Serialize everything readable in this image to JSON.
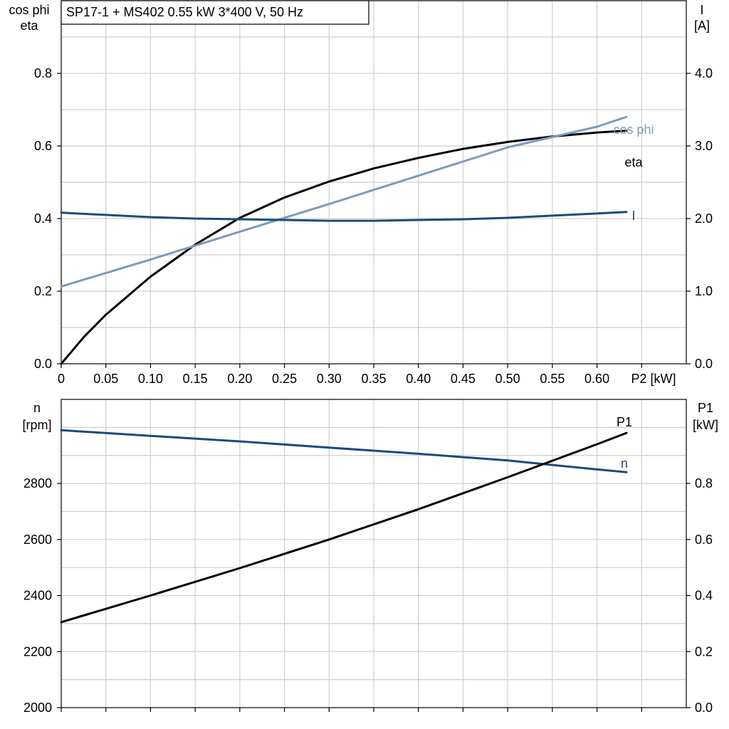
{
  "title": "SP17-1 + MS402   0.55 kW   3*400 V, 50 Hz",
  "colors": {
    "eta": "#000000",
    "cosphi": "#7a9cbb",
    "I": "#1b4a7e",
    "n": "#1b4a7e",
    "P1": "#000000",
    "grid": "#cfcfcf"
  },
  "chart_data": [
    {
      "type": "line",
      "grid": true,
      "x": {
        "label": "P2 [kW]",
        "range": [
          0,
          0.7
        ],
        "ticks": [
          "0",
          "0.05",
          "0.10",
          "0.15",
          "0.20",
          "0.25",
          "0.30",
          "0.35",
          "0.40",
          "0.45",
          "0.50",
          "0.55",
          "0.60"
        ]
      },
      "y_left": {
        "label_lines": [
          "cos phi",
          "eta"
        ],
        "range": [
          0,
          1.0
        ],
        "ticks": [
          "0.0",
          "0.2",
          "0.4",
          "0.6",
          "0.8"
        ]
      },
      "y_right": {
        "label_lines": [
          "I",
          "[A]"
        ],
        "range": [
          0,
          5.0
        ],
        "ticks": [
          "0.0",
          "1.0",
          "2.0",
          "3.0",
          "4.0"
        ]
      },
      "series": [
        {
          "name": "eta",
          "axis": "left",
          "x": [
            0,
            0.025,
            0.05,
            0.1,
            0.15,
            0.2,
            0.25,
            0.3,
            0.35,
            0.4,
            0.45,
            0.5,
            0.55,
            0.6,
            0.633
          ],
          "y": [
            0,
            0.073,
            0.135,
            0.24,
            0.328,
            0.402,
            0.458,
            0.502,
            0.538,
            0.567,
            0.592,
            0.611,
            0.626,
            0.637,
            0.642
          ]
        },
        {
          "name": "cos phi",
          "axis": "left",
          "x": [
            0,
            0.1,
            0.2,
            0.3,
            0.4,
            0.5,
            0.6,
            0.633
          ],
          "y": [
            0.213,
            0.287,
            0.364,
            0.44,
            0.518,
            0.596,
            0.653,
            0.68
          ]
        },
        {
          "name": "I",
          "axis": "right",
          "x": [
            0,
            0.05,
            0.1,
            0.15,
            0.2,
            0.25,
            0.3,
            0.35,
            0.4,
            0.45,
            0.5,
            0.55,
            0.6,
            0.633
          ],
          "y": [
            2.08,
            2.05,
            2.02,
            2.0,
            1.99,
            1.98,
            1.97,
            1.97,
            1.98,
            1.99,
            2.01,
            2.04,
            2.07,
            2.09
          ]
        }
      ]
    },
    {
      "type": "line",
      "grid": true,
      "x": {
        "range": [
          0,
          0.7
        ]
      },
      "y_left": {
        "label_lines": [
          "n",
          "[rpm]"
        ],
        "range": [
          2000,
          3100
        ],
        "ticks": [
          "2000",
          "2200",
          "2400",
          "2600",
          "2800"
        ]
      },
      "y_right": {
        "label_lines": [
          "P1",
          "[kW]"
        ],
        "range": [
          0,
          1.1
        ],
        "ticks": [
          "0.0",
          "0.2",
          "0.4",
          "0.6",
          "0.8"
        ]
      },
      "series": [
        {
          "name": "n",
          "axis": "left",
          "x": [
            0,
            0.1,
            0.2,
            0.3,
            0.4,
            0.5,
            0.6,
            0.633
          ],
          "y": [
            2990,
            2970,
            2950,
            2928,
            2906,
            2882,
            2850,
            2840
          ]
        },
        {
          "name": "P1",
          "axis": "right",
          "x": [
            0,
            0.1,
            0.2,
            0.3,
            0.4,
            0.5,
            0.6,
            0.633
          ],
          "y": [
            0.305,
            0.4,
            0.498,
            0.6,
            0.708,
            0.822,
            0.94,
            0.98
          ]
        }
      ]
    }
  ]
}
